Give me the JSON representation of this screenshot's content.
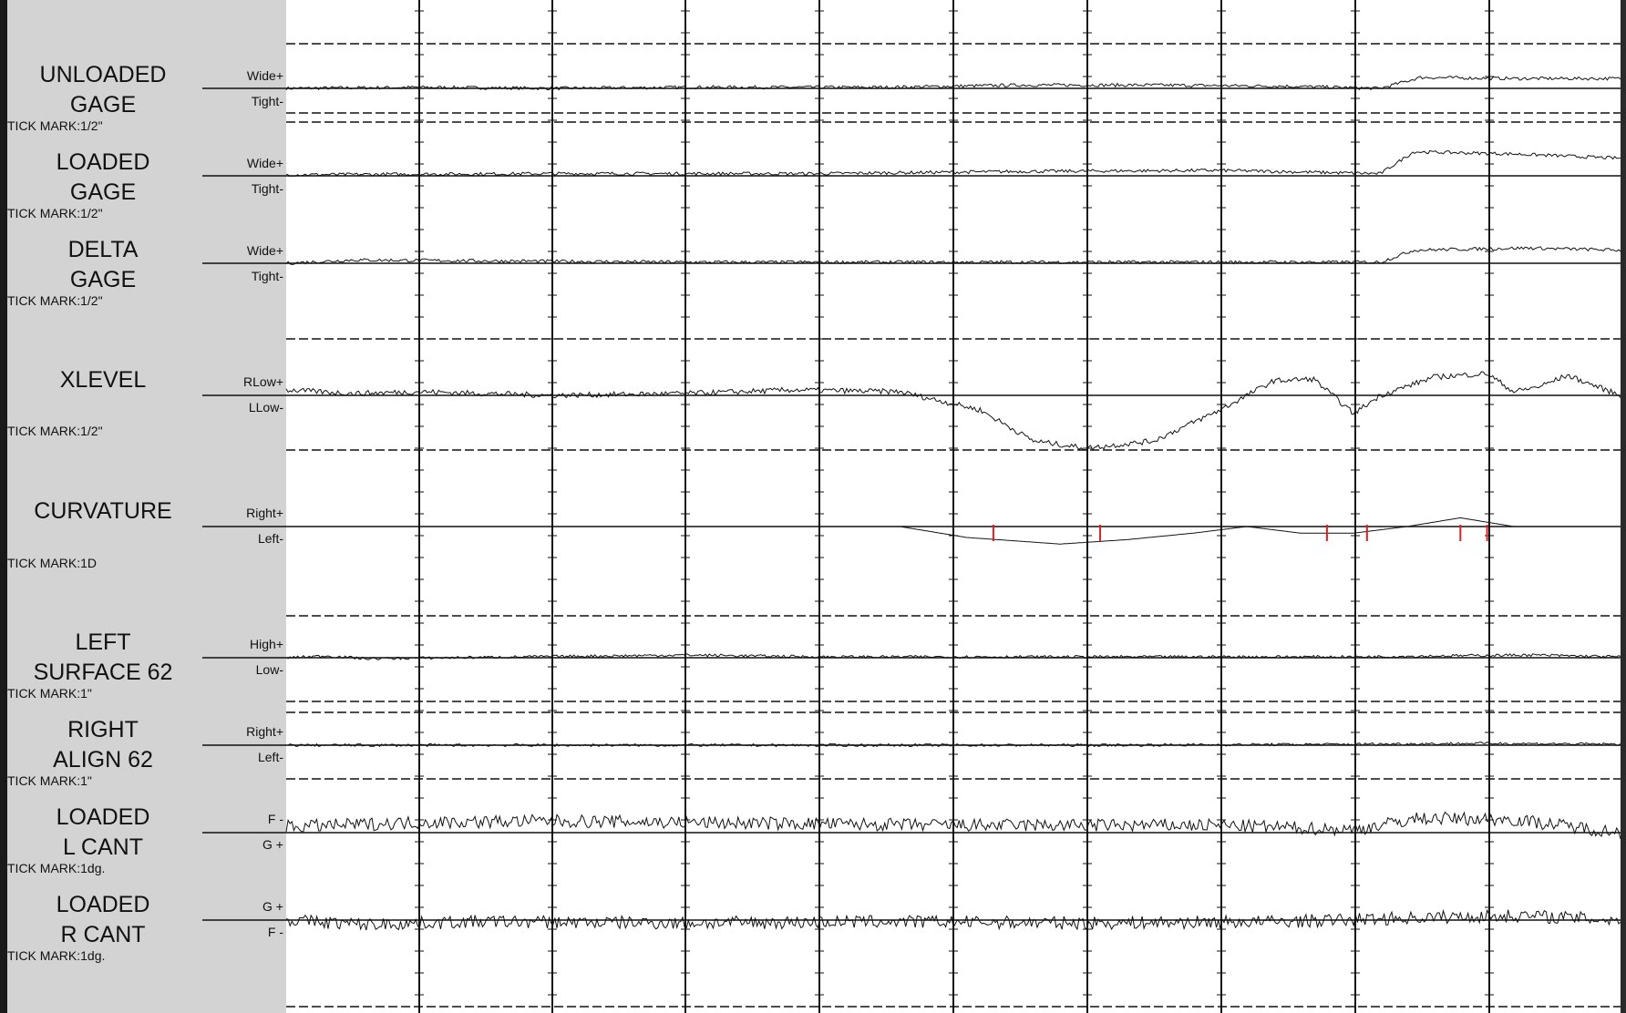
{
  "colors": {
    "panel": "#d3d3d3",
    "trace": "#111111",
    "marker": "#e02020",
    "grid": "#111111"
  },
  "grid": {
    "vertical_lines": 10,
    "tick_spacing": "regular"
  },
  "chart_data": {
    "type": "line",
    "title": "",
    "channels": [
      {
        "id": "unloaded-gage",
        "title": "UNLOADED\nGAGE",
        "tick_mark": "TICK MARK:1/2\"",
        "pos_label": "Wide+",
        "neg_label": "Tight-",
        "limits": "dashed",
        "series": [
          {
            "x": 0.0,
            "y": 0.0
          },
          {
            "x": 0.1,
            "y": 0.1
          },
          {
            "x": 0.2,
            "y": 0.0
          },
          {
            "x": 0.3,
            "y": 0.1
          },
          {
            "x": 0.45,
            "y": 0.1
          },
          {
            "x": 0.55,
            "y": 0.3
          },
          {
            "x": 0.65,
            "y": 0.3
          },
          {
            "x": 0.75,
            "y": 0.2
          },
          {
            "x": 0.82,
            "y": 0.0
          },
          {
            "x": 0.85,
            "y": 1.0
          },
          {
            "x": 0.92,
            "y": 0.9
          },
          {
            "x": 1.0,
            "y": 0.9
          }
        ]
      },
      {
        "id": "loaded-gage",
        "title": "LOADED\nGAGE",
        "tick_mark": "TICK MARK:1/2\"",
        "pos_label": "Wide+",
        "neg_label": "Tight-",
        "limits": "none",
        "series": [
          {
            "x": 0.0,
            "y": 0.1
          },
          {
            "x": 0.2,
            "y": 0.2
          },
          {
            "x": 0.4,
            "y": 0.2
          },
          {
            "x": 0.55,
            "y": 0.4
          },
          {
            "x": 0.7,
            "y": 0.5
          },
          {
            "x": 0.82,
            "y": 0.2
          },
          {
            "x": 0.845,
            "y": 2.2
          },
          {
            "x": 0.92,
            "y": 2.0
          },
          {
            "x": 1.0,
            "y": 1.6
          }
        ]
      },
      {
        "id": "delta-gage",
        "title": "DELTA\nGAGE",
        "tick_mark": "TICK MARK:1/2\"",
        "pos_label": "Wide+",
        "neg_label": "Tight-",
        "limits": "none",
        "series": [
          {
            "x": 0.0,
            "y": 0.0
          },
          {
            "x": 0.05,
            "y": 0.3
          },
          {
            "x": 0.3,
            "y": 0.1
          },
          {
            "x": 0.45,
            "y": 0.1
          },
          {
            "x": 0.7,
            "y": 0.1
          },
          {
            "x": 0.82,
            "y": 0.1
          },
          {
            "x": 0.845,
            "y": 1.2
          },
          {
            "x": 0.93,
            "y": 1.4
          },
          {
            "x": 1.0,
            "y": 1.2
          }
        ]
      },
      {
        "id": "xlevel",
        "title": "XLEVEL",
        "tick_mark": "TICK MARK:1/2\"",
        "pos_label": "RLow+",
        "neg_label": "LLow-",
        "limits": "dashed",
        "series": [
          {
            "x": 0.0,
            "y": 0.3
          },
          {
            "x": 0.05,
            "y": 0.1
          },
          {
            "x": 0.1,
            "y": 0.2
          },
          {
            "x": 0.2,
            "y": 0.0
          },
          {
            "x": 0.3,
            "y": 0.1
          },
          {
            "x": 0.38,
            "y": 0.3
          },
          {
            "x": 0.46,
            "y": 0.2
          },
          {
            "x": 0.52,
            "y": -0.8
          },
          {
            "x": 0.56,
            "y": -2.5
          },
          {
            "x": 0.6,
            "y": -2.9
          },
          {
            "x": 0.65,
            "y": -2.5
          },
          {
            "x": 0.7,
            "y": -0.8
          },
          {
            "x": 0.74,
            "y": 0.8
          },
          {
            "x": 0.77,
            "y": 0.9
          },
          {
            "x": 0.8,
            "y": -1.0
          },
          {
            "x": 0.82,
            "y": 0.0
          },
          {
            "x": 0.86,
            "y": 1.0
          },
          {
            "x": 0.9,
            "y": 1.2
          },
          {
            "x": 0.92,
            "y": 0.2
          },
          {
            "x": 0.94,
            "y": 0.5
          },
          {
            "x": 0.96,
            "y": 1.1
          },
          {
            "x": 1.0,
            "y": 0.0
          }
        ]
      },
      {
        "id": "curvature",
        "title": "CURVATURE",
        "tick_mark": "TICK MARK:1D",
        "pos_label": "Right+",
        "neg_label": "Left-",
        "limits": "none",
        "series": [
          {
            "x": 0.0,
            "y": 0.0
          },
          {
            "x": 0.46,
            "y": 0.0
          },
          {
            "x": 0.51,
            "y": -0.5
          },
          {
            "x": 0.58,
            "y": -0.8
          },
          {
            "x": 0.63,
            "y": -0.6
          },
          {
            "x": 0.68,
            "y": -0.3
          },
          {
            "x": 0.72,
            "y": 0.0
          },
          {
            "x": 0.76,
            "y": -0.3
          },
          {
            "x": 0.8,
            "y": -0.3
          },
          {
            "x": 0.84,
            "y": 0.0
          },
          {
            "x": 0.88,
            "y": 0.4
          },
          {
            "x": 0.92,
            "y": 0.0
          },
          {
            "x": 1.0,
            "y": 0.0
          }
        ],
        "markers": [
          0.53,
          0.61,
          0.78,
          0.81,
          0.88,
          0.9
        ]
      },
      {
        "id": "left-surface",
        "title": "LEFT\nSURFACE 62",
        "tick_mark": "TICK MARK:1\"",
        "pos_label": "High+",
        "neg_label": "Low-",
        "limits": "dashed",
        "series": [
          {
            "x": 0.0,
            "y": 0.0
          },
          {
            "x": 0.03,
            "y": 0.2
          },
          {
            "x": 0.06,
            "y": -0.1
          },
          {
            "x": 0.3,
            "y": 0.3
          },
          {
            "x": 0.4,
            "y": 0.1
          },
          {
            "x": 0.6,
            "y": 0.1
          },
          {
            "x": 0.8,
            "y": 0.1
          },
          {
            "x": 0.93,
            "y": 0.3
          },
          {
            "x": 1.0,
            "y": 0.1
          }
        ]
      },
      {
        "id": "right-align",
        "title": "RIGHT\nALIGN 62",
        "tick_mark": "TICK MARK:1\"",
        "pos_label": "Right+",
        "neg_label": "Left-",
        "limits": "dashed",
        "series": [
          {
            "x": 0.0,
            "y": 0.0
          },
          {
            "x": 0.3,
            "y": 0.0
          },
          {
            "x": 0.6,
            "y": 0.0
          },
          {
            "x": 0.8,
            "y": 0.1
          },
          {
            "x": 0.9,
            "y": 0.2
          },
          {
            "x": 1.0,
            "y": 0.1
          }
        ]
      },
      {
        "id": "loaded-l-cant",
        "title": "LOADED\nL CANT",
        "tick_mark": "TICK MARK:1dg.",
        "pos_label": "F -",
        "neg_label": "G +",
        "limits": "none",
        "series": [
          {
            "x": 0.0,
            "y": 0.4
          },
          {
            "x": 0.1,
            "y": 0.7
          },
          {
            "x": 0.2,
            "y": 0.8
          },
          {
            "x": 0.3,
            "y": 0.7
          },
          {
            "x": 0.4,
            "y": 0.6
          },
          {
            "x": 0.5,
            "y": 0.5
          },
          {
            "x": 0.6,
            "y": 0.5
          },
          {
            "x": 0.7,
            "y": 0.5
          },
          {
            "x": 0.8,
            "y": 0.2
          },
          {
            "x": 0.85,
            "y": 1.0
          },
          {
            "x": 0.92,
            "y": 0.9
          },
          {
            "x": 1.0,
            "y": 0.0
          }
        ]
      },
      {
        "id": "loaded-r-cant",
        "title": "LOADED\nR CANT",
        "tick_mark": "TICK MARK:1dg.",
        "pos_label": "G +",
        "neg_label": "F -",
        "limits": "dashed",
        "series": [
          {
            "x": 0.0,
            "y": 0.0
          },
          {
            "x": 0.06,
            "y": -0.3
          },
          {
            "x": 0.15,
            "y": -0.1
          },
          {
            "x": 0.3,
            "y": -0.2
          },
          {
            "x": 0.45,
            "y": -0.1
          },
          {
            "x": 0.6,
            "y": -0.2
          },
          {
            "x": 0.75,
            "y": -0.1
          },
          {
            "x": 0.86,
            "y": 0.2
          },
          {
            "x": 0.93,
            "y": 0.3
          },
          {
            "x": 1.0,
            "y": 0.0
          }
        ]
      }
    ]
  }
}
